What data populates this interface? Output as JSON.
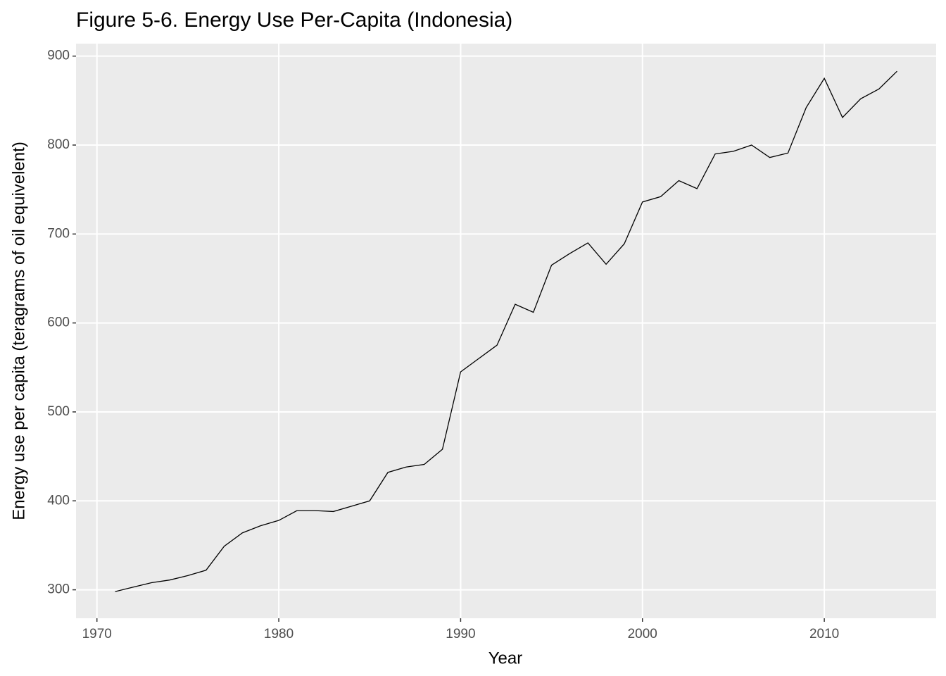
{
  "chart_data": {
    "type": "line",
    "title": "Figure 5-6. Energy Use Per-Capita (Indonesia)",
    "x_label": "Year",
    "y_label": "Energy use per capita (teragrams of oil equivelent)",
    "x": [
      1971,
      1972,
      1973,
      1974,
      1975,
      1976,
      1977,
      1978,
      1979,
      1980,
      1981,
      1982,
      1983,
      1984,
      1985,
      1986,
      1987,
      1988,
      1989,
      1990,
      1991,
      1992,
      1993,
      1994,
      1995,
      1996,
      1997,
      1998,
      1999,
      2000,
      2001,
      2002,
      2003,
      2004,
      2005,
      2006,
      2007,
      2008,
      2009,
      2010,
      2011,
      2012,
      2013,
      2014
    ],
    "values": [
      298,
      303,
      308,
      311,
      316,
      322,
      349,
      364,
      372,
      378,
      389,
      389,
      388,
      394,
      400,
      432,
      438,
      441,
      458,
      545,
      560,
      575,
      621,
      612,
      665,
      678,
      690,
      666,
      689,
      736,
      742,
      760,
      751,
      790,
      793,
      800,
      786,
      791,
      842,
      875,
      831,
      852,
      863,
      883
    ],
    "color": "#000000",
    "xlim": [
      1968.85,
      2016.15
    ],
    "xticks": [
      1970,
      1980,
      1990,
      2000,
      2010
    ],
    "ylim": [
      268,
      914
    ],
    "yticks": [
      300,
      400,
      500,
      600,
      700,
      800,
      900
    ],
    "grid": true
  }
}
